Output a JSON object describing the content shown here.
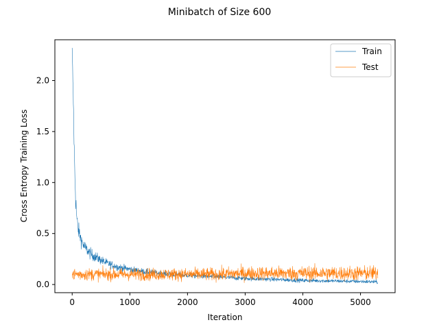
{
  "chart_data": {
    "type": "line",
    "title": "Minibatch of Size 600",
    "xlabel": "Iteration",
    "ylabel": "Cross Entropy Training Loss",
    "xlim": [
      -300,
      5600
    ],
    "ylim": [
      -0.08,
      2.4
    ],
    "xticks": [
      0,
      1000,
      2000,
      3000,
      4000,
      5000
    ],
    "yticks": [
      0.0,
      0.5,
      1.0,
      1.5,
      2.0
    ],
    "grid": false,
    "legend": "top-right",
    "x_max_iteration": 5300,
    "series": [
      {
        "name": "Train",
        "color": "#1f77b4",
        "x": [
          0,
          20,
          40,
          60,
          80,
          100,
          150,
          200,
          300,
          400,
          500,
          600,
          800,
          1000,
          1200,
          1500,
          2000,
          2500,
          3000,
          3500,
          4000,
          4500,
          5000,
          5300
        ],
        "y": [
          2.3,
          1.8,
          1.2,
          0.85,
          0.65,
          0.55,
          0.45,
          0.38,
          0.31,
          0.27,
          0.24,
          0.21,
          0.17,
          0.15,
          0.13,
          0.11,
          0.09,
          0.075,
          0.06,
          0.05,
          0.04,
          0.035,
          0.03,
          0.025
        ],
        "noise": [
          0.02,
          0.05,
          0.06,
          0.05,
          0.045,
          0.04,
          0.035,
          0.03,
          0.028,
          0.025,
          0.022,
          0.02,
          0.018,
          0.016,
          0.015,
          0.014,
          0.012,
          0.012,
          0.011,
          0.01,
          0.01,
          0.009,
          0.009,
          0.009
        ]
      },
      {
        "name": "Test",
        "color": "#ff7f0e",
        "x": [
          0,
          500,
          1000,
          1500,
          2000,
          2500,
          3000,
          3500,
          4000,
          4500,
          5000,
          5300
        ],
        "y": [
          0.1,
          0.1,
          0.1,
          0.1,
          0.1,
          0.1,
          0.11,
          0.11,
          0.11,
          0.11,
          0.11,
          0.11
        ],
        "noise": [
          0.03,
          0.03,
          0.03,
          0.03,
          0.03,
          0.032,
          0.034,
          0.034,
          0.036,
          0.036,
          0.036,
          0.036
        ]
      }
    ]
  }
}
